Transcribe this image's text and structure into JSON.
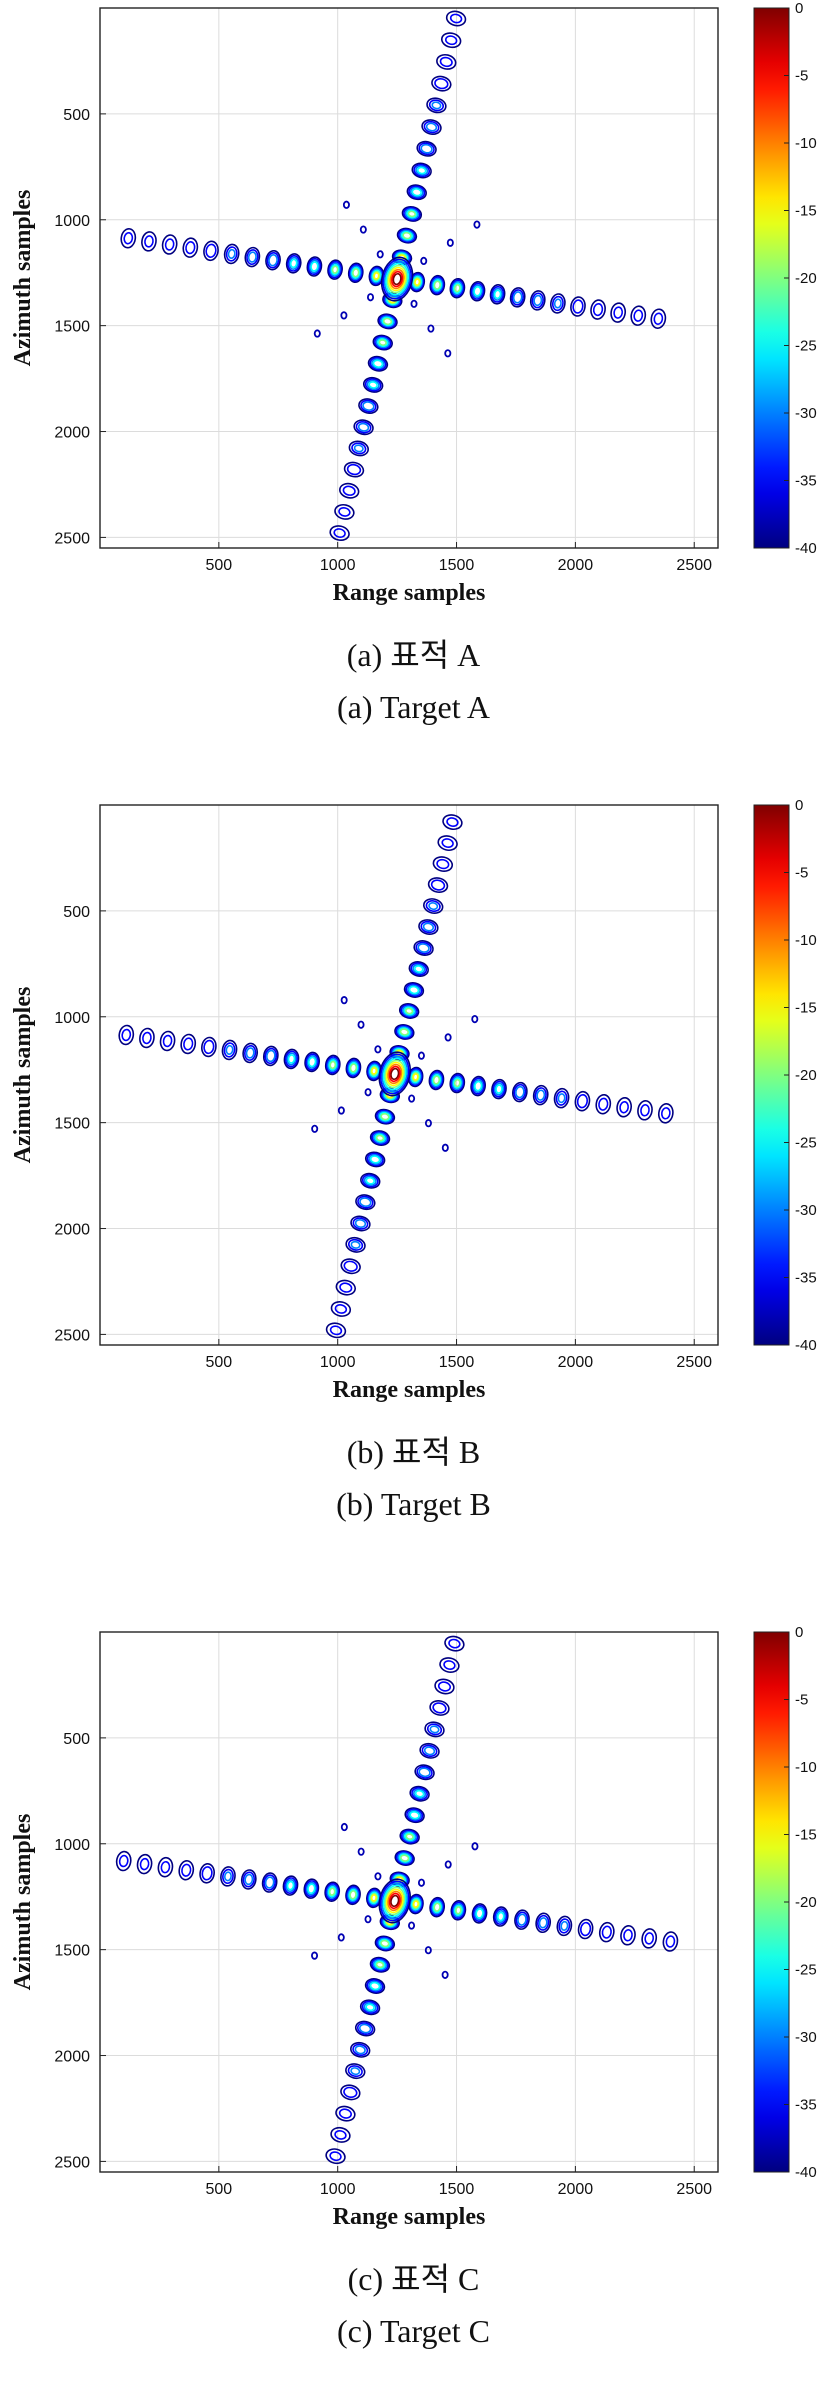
{
  "chart_data": [
    {
      "type": "contour",
      "xlabel": "Range samples",
      "ylabel": "Azimuth samples",
      "xlim": [
        0,
        2600
      ],
      "ylim": [
        2550,
        0
      ],
      "xticks": [
        500,
        1000,
        1500,
        2000,
        2500
      ],
      "yticks": [
        500,
        1000,
        1500,
        2000,
        2500
      ],
      "colorbar": {
        "min": -40,
        "max": 0,
        "ticks": [
          0,
          -5,
          -10,
          -15,
          -20,
          -25,
          -30,
          -35,
          -40
        ]
      },
      "peak": {
        "x": 1250,
        "y": 1280,
        "level_db": 0
      },
      "range_arm": {
        "from": [
          120,
          1080
        ],
        "to": [
          2350,
          1460
        ],
        "sidelobes": 26
      },
      "azimuth_arm": {
        "from": [
          1500,
          50
        ],
        "to": [
          1010,
          2480
        ],
        "sidelobes": 24
      },
      "caption_ko": "(a) 표적 A",
      "caption_en": "(a) Target A"
    },
    {
      "type": "contour",
      "xlabel": "Range samples",
      "ylabel": "Azimuth samples",
      "xlim": [
        0,
        2600
      ],
      "ylim": [
        2550,
        0
      ],
      "xticks": [
        500,
        1000,
        1500,
        2000,
        2500
      ],
      "yticks": [
        500,
        1000,
        1500,
        2000,
        2500
      ],
      "colorbar": {
        "min": -40,
        "max": 0,
        "ticks": [
          0,
          -5,
          -10,
          -15,
          -20,
          -25,
          -30,
          -35,
          -40
        ]
      },
      "peak": {
        "x": 1240,
        "y": 1270,
        "level_db": 0
      },
      "range_arm": {
        "from": [
          110,
          1090
        ],
        "to": [
          2380,
          1460
        ],
        "sidelobes": 26
      },
      "azimuth_arm": {
        "from": [
          1480,
          80
        ],
        "to": [
          990,
          2480
        ],
        "sidelobes": 24
      },
      "caption_ko": "(b) 표적 B",
      "caption_en": "(b) Target B"
    },
    {
      "type": "contour",
      "xlabel": "Range samples",
      "ylabel": "Azimuth samples",
      "xlim": [
        0,
        2600
      ],
      "ylim": [
        2550,
        0
      ],
      "xticks": [
        500,
        1000,
        1500,
        2000,
        2500
      ],
      "yticks": [
        500,
        1000,
        1500,
        2000,
        2500
      ],
      "colorbar": {
        "min": -40,
        "max": 0,
        "ticks": [
          0,
          -5,
          -10,
          -15,
          -20,
          -25,
          -30,
          -35,
          -40
        ]
      },
      "peak": {
        "x": 1240,
        "y": 1270,
        "level_db": 0
      },
      "range_arm": {
        "from": [
          100,
          1080
        ],
        "to": [
          2400,
          1460
        ],
        "sidelobes": 26
      },
      "azimuth_arm": {
        "from": [
          1510,
          60
        ],
        "to": [
          1010,
          2480
        ],
        "sidelobes": 24
      },
      "caption_ko": "(c) 표적 C",
      "caption_en": "(c) Target C"
    }
  ]
}
